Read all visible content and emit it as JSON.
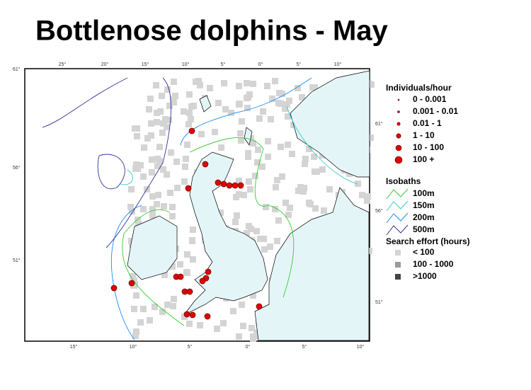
{
  "title": "Bottlenose dolphins - May",
  "map": {
    "lon_labels_top": [
      "25°",
      "20°",
      "15°",
      "10°",
      "5°",
      "0°",
      "5°",
      "10°"
    ],
    "lon_labels_bottom": [
      "15°",
      "10°",
      "5°",
      "0°",
      "5°",
      "10°"
    ],
    "lat_labels_left": [
      "61°",
      "56°",
      "51°"
    ],
    "lat_labels_right": [
      "61°",
      "56°",
      "51°"
    ]
  },
  "legend": {
    "individuals": {
      "title": "Individuals/hour",
      "items": [
        "0 - 0.001",
        "0.001 - 0.01",
        "0.01 - 1",
        "1 - 10",
        "10 - 100",
        "100 +"
      ]
    },
    "isobaths": {
      "title": "Isobaths",
      "items": [
        "100m",
        "150m",
        "200m",
        "500m"
      ]
    },
    "effort": {
      "title": "Search effort (hours)",
      "items": [
        "< 100",
        "100 - 1000",
        ">1000"
      ]
    }
  }
}
